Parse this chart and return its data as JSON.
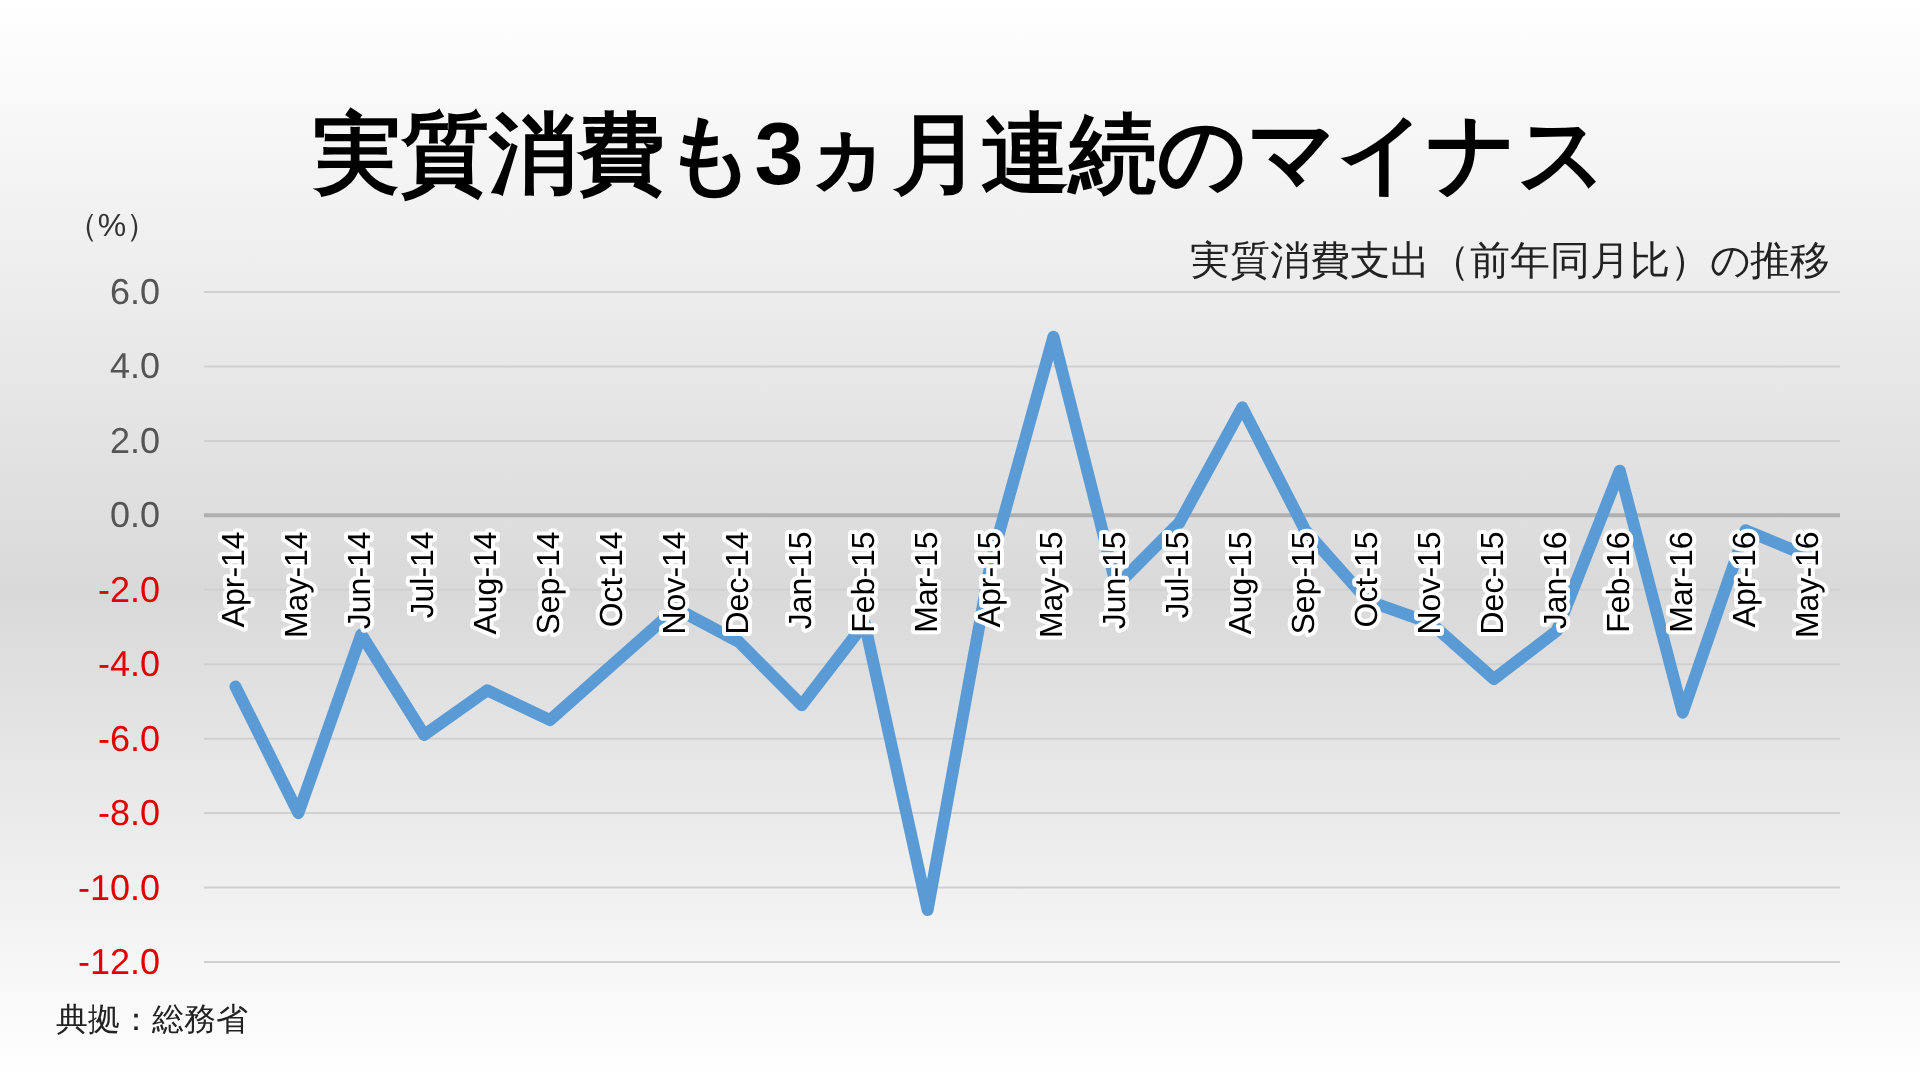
{
  "chart_data": {
    "type": "line",
    "title": "実質消費も3ヵ月連続のマイナス",
    "subtitle": "実質消費支出（前年同月比）の推移",
    "ylabel": "（%）",
    "annotations": [
      "典拠：総務省"
    ],
    "categories": [
      "Apr-14",
      "May-14",
      "Jun-14",
      "Jul-14",
      "Aug-14",
      "Sep-14",
      "Oct-14",
      "Nov-14",
      "Dec-14",
      "Jan-15",
      "Feb-15",
      "Mar-15",
      "Apr-15",
      "May-15",
      "Jun-15",
      "Jul-15",
      "Aug-15",
      "Sep-15",
      "Oct-15",
      "Nov-15",
      "Dec-15",
      "Jan-16",
      "Feb-16",
      "Mar-16",
      "Apr-16",
      "May-16"
    ],
    "series": [
      {
        "color": "#5b9bd5",
        "values": [
          -4.6,
          -8.0,
          -3.2,
          -5.9,
          -4.7,
          -5.5,
          -4.0,
          -2.5,
          -3.4,
          -5.1,
          -2.9,
          -10.6,
          -1.3,
          4.8,
          -1.9,
          -0.2,
          2.9,
          -0.4,
          -2.3,
          -2.9,
          -4.4,
          -3.1,
          1.2,
          -5.3,
          -0.4,
          -1.1
        ]
      }
    ],
    "ylim": [
      -12,
      6
    ],
    "yticks": [
      {
        "value": 6,
        "label": "6.0"
      },
      {
        "value": 4,
        "label": "4.0"
      },
      {
        "value": 2,
        "label": "2.0"
      },
      {
        "value": 0,
        "label": "0.0"
      },
      {
        "value": -2,
        "label": "-2.0"
      },
      {
        "value": -4,
        "label": "-4.0"
      },
      {
        "value": -6,
        "label": "-6.0"
      },
      {
        "value": -8,
        "label": "-8.0"
      },
      {
        "value": -10,
        "label": "-10.0"
      },
      {
        "value": -12,
        "label": "-12.0"
      }
    ],
    "grid": "y",
    "marker": "none",
    "line_style": "solid"
  }
}
